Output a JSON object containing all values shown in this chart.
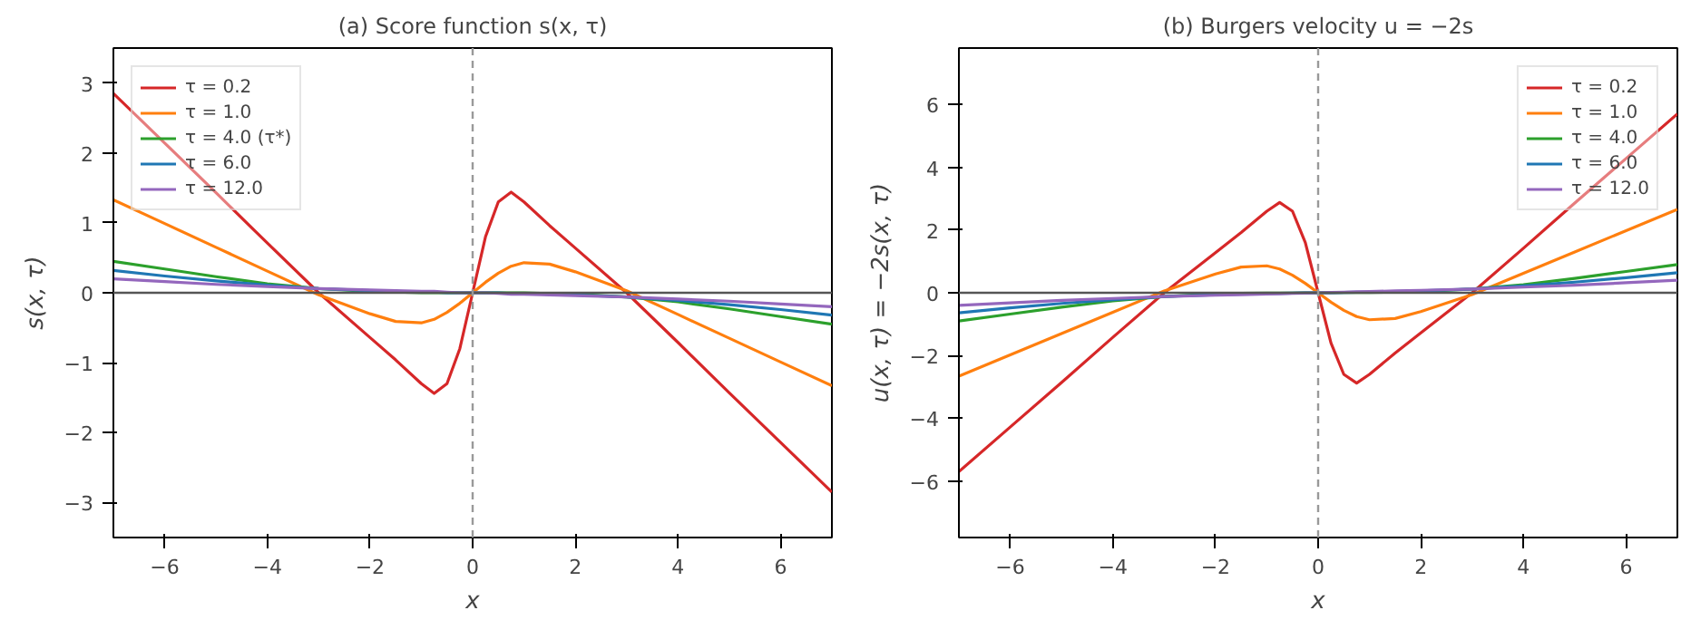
{
  "chart_data": [
    {
      "type": "line",
      "title": "(a) Score function s(x, τ)",
      "xlabel": "x",
      "ylabel": "s(x, τ)",
      "x": [
        -7,
        -6,
        -5,
        -4,
        -3,
        -2,
        -1.5,
        -1,
        -0.75,
        -0.5,
        -0.25,
        0,
        0.25,
        0.5,
        0.75,
        1,
        1.5,
        2,
        3,
        4,
        5,
        6,
        7
      ],
      "series": [
        {
          "name": "τ = 0.2",
          "color": "#d62728",
          "values": [
            2.85,
            2.14,
            1.43,
            0.71,
            0,
            -0.64,
            -0.96,
            -1.3,
            -1.44,
            -1.3,
            -0.8,
            0,
            0.8,
            1.3,
            1.44,
            1.3,
            0.96,
            0.64,
            0,
            -0.71,
            -1.43,
            -2.14,
            -2.85
          ]
        },
        {
          "name": "τ = 1.0",
          "color": "#ff7f0e",
          "values": [
            1.33,
            0.99,
            0.65,
            0.31,
            -0.03,
            -0.3,
            -0.41,
            -0.43,
            -0.38,
            -0.28,
            -0.15,
            0,
            0.15,
            0.28,
            0.38,
            0.43,
            0.41,
            0.3,
            0.03,
            -0.31,
            -0.65,
            -0.99,
            -1.33
          ]
        },
        {
          "name": "τ = 4.0 (τ*)",
          "color": "#2ca02c",
          "values": [
            0.45,
            0.34,
            0.23,
            0.13,
            0.06,
            0.02,
            0.01,
            0,
            0,
            0,
            0,
            0,
            0,
            0,
            0,
            0,
            -0.01,
            -0.02,
            -0.06,
            -0.13,
            -0.23,
            -0.34,
            -0.45
          ]
        },
        {
          "name": "τ = 6.0",
          "color": "#1f77b4",
          "values": [
            0.32,
            0.24,
            0.17,
            0.11,
            0.06,
            0.03,
            0.02,
            0.01,
            0.01,
            0,
            0,
            0,
            0,
            0,
            -0.01,
            -0.01,
            -0.02,
            -0.03,
            -0.06,
            -0.11,
            -0.17,
            -0.24,
            -0.32
          ]
        },
        {
          "name": "τ = 12.0",
          "color": "#9467bd",
          "values": [
            0.2,
            0.16,
            0.12,
            0.09,
            0.06,
            0.04,
            0.03,
            0.02,
            0.02,
            0.01,
            0,
            0,
            0,
            -0.01,
            -0.02,
            -0.02,
            -0.03,
            -0.04,
            -0.06,
            -0.09,
            -0.12,
            -0.16,
            -0.2
          ]
        }
      ],
      "xlim": [
        -7,
        7
      ],
      "ylim": [
        -3.5,
        3.5
      ],
      "xticks": [
        {
          "value": -6,
          "label": "−6"
        },
        {
          "value": -4,
          "label": "−4"
        },
        {
          "value": -2,
          "label": "−2"
        },
        0,
        2,
        4,
        6
      ],
      "yticks": [
        {
          "value": -3,
          "label": "−3"
        },
        {
          "value": -2,
          "label": "−2"
        },
        {
          "value": -1,
          "label": "−1"
        },
        0,
        1,
        2,
        3
      ],
      "ref_lines": [
        {
          "axis": "y",
          "value": 0,
          "color": "#555555",
          "line_style": "solid"
        },
        {
          "axis": "x",
          "value": 0,
          "color": "#999999",
          "line_style": "dashed"
        }
      ],
      "legend": "top left",
      "grid": false,
      "line_style": "solid"
    },
    {
      "type": "line",
      "title": "(b) Burgers velocity u = −2s",
      "xlabel": "x",
      "ylabel": "u(x, τ) = −2s(x, τ)",
      "x": [
        -7,
        -6,
        -5,
        -4,
        -3,
        -2,
        -1.5,
        -1,
        -0.75,
        -0.5,
        -0.25,
        0,
        0.25,
        0.5,
        0.75,
        1,
        1.5,
        2,
        3,
        4,
        5,
        6,
        7
      ],
      "series": [
        {
          "name": "τ = 0.2",
          "color": "#d62728",
          "values": [
            -5.7,
            -4.28,
            -2.86,
            -1.42,
            0,
            1.28,
            1.92,
            2.6,
            2.88,
            2.6,
            1.6,
            0,
            -1.6,
            -2.6,
            -2.88,
            -2.6,
            -1.92,
            -1.28,
            0,
            1.42,
            2.86,
            4.28,
            5.7
          ]
        },
        {
          "name": "τ = 1.0",
          "color": "#ff7f0e",
          "values": [
            -2.66,
            -1.98,
            -1.3,
            -0.62,
            0.06,
            0.6,
            0.82,
            0.86,
            0.76,
            0.56,
            0.3,
            0,
            -0.3,
            -0.56,
            -0.76,
            -0.86,
            -0.82,
            -0.6,
            -0.06,
            0.62,
            1.3,
            1.98,
            2.66
          ]
        },
        {
          "name": "τ = 4.0",
          "color": "#2ca02c",
          "values": [
            -0.9,
            -0.68,
            -0.46,
            -0.26,
            -0.12,
            -0.04,
            -0.02,
            -0.01,
            -0.01,
            -0.01,
            0,
            0,
            0,
            0.01,
            0.01,
            0.01,
            0.02,
            0.04,
            0.12,
            0.26,
            0.46,
            0.68,
            0.9
          ]
        },
        {
          "name": "τ = 6.0",
          "color": "#1f77b4",
          "values": [
            -0.64,
            -0.48,
            -0.34,
            -0.22,
            -0.12,
            -0.06,
            -0.04,
            -0.02,
            -0.02,
            -0.01,
            0,
            0,
            0,
            0.01,
            0.02,
            0.02,
            0.04,
            0.06,
            0.12,
            0.22,
            0.34,
            0.48,
            0.64
          ]
        },
        {
          "name": "τ = 12.0",
          "color": "#9467bd",
          "values": [
            -0.4,
            -0.32,
            -0.24,
            -0.18,
            -0.12,
            -0.08,
            -0.06,
            -0.04,
            -0.03,
            -0.02,
            -0.01,
            0,
            0.01,
            0.02,
            0.03,
            0.04,
            0.06,
            0.08,
            0.12,
            0.18,
            0.24,
            0.32,
            0.4
          ]
        }
      ],
      "xlim": [
        -7,
        7
      ],
      "ylim": [
        -7.8,
        7.8
      ],
      "xticks": [
        {
          "value": -6,
          "label": "−6"
        },
        {
          "value": -4,
          "label": "−4"
        },
        {
          "value": -2,
          "label": "−2"
        },
        0,
        2,
        4,
        6
      ],
      "yticks": [
        {
          "value": -6,
          "label": "−6"
        },
        {
          "value": -4,
          "label": "−4"
        },
        {
          "value": -2,
          "label": "−2"
        },
        0,
        2,
        4,
        6
      ],
      "ref_lines": [
        {
          "axis": "y",
          "value": 0,
          "color": "#555555",
          "line_style": "solid"
        },
        {
          "axis": "x",
          "value": 0,
          "color": "#999999",
          "line_style": "dashed"
        }
      ],
      "legend": "top right",
      "grid": false,
      "line_style": "solid"
    }
  ]
}
